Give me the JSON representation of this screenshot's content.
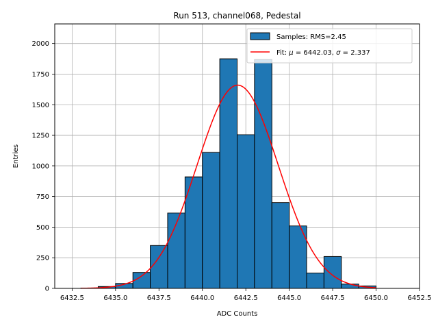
{
  "chart_data": {
    "type": "bar",
    "title": "Run 513, channel068, Pedestal",
    "xlabel": "ADC Counts",
    "ylabel": "Entries",
    "xlim": [
      6431.5,
      6452.5
    ],
    "ylim": [
      0,
      2160
    ],
    "grid": true,
    "legend_position": "top-right",
    "xticks": [
      6432.5,
      6435.0,
      6437.5,
      6440.0,
      6442.5,
      6445.0,
      6447.5,
      6450.0,
      6452.5
    ],
    "xtick_labels": [
      "6432.5",
      "6435.0",
      "6437.5",
      "6440.0",
      "6442.5",
      "6445.0",
      "6447.5",
      "6450.0",
      "6452.5"
    ],
    "yticks": [
      0,
      250,
      500,
      750,
      1000,
      1250,
      1500,
      1750,
      2000
    ],
    "ytick_labels": [
      "0",
      "250",
      "500",
      "750",
      "1000",
      "1250",
      "1500",
      "1750",
      "2000"
    ],
    "histogram": {
      "name": "Samples: RMS=2.45",
      "color": "#1f77b4",
      "edge_color": "#000000",
      "bin_width": 1.0,
      "bins": [
        {
          "start": 6433.0,
          "count": 2
        },
        {
          "start": 6434.0,
          "count": 15
        },
        {
          "start": 6435.0,
          "count": 40
        },
        {
          "start": 6436.0,
          "count": 130
        },
        {
          "start": 6437.0,
          "count": 350
        },
        {
          "start": 6438.0,
          "count": 615
        },
        {
          "start": 6439.0,
          "count": 910
        },
        {
          "start": 6440.0,
          "count": 1110
        },
        {
          "start": 6441.0,
          "count": 1875
        },
        {
          "start": 6442.0,
          "count": 1255
        },
        {
          "start": 6443.0,
          "count": 1870
        },
        {
          "start": 6444.0,
          "count": 700
        },
        {
          "start": 6445.0,
          "count": 510
        },
        {
          "start": 6446.0,
          "count": 125
        },
        {
          "start": 6447.0,
          "count": 260
        },
        {
          "start": 6448.0,
          "count": 35
        },
        {
          "start": 6449.0,
          "count": 20
        }
      ]
    },
    "fit": {
      "name": "Fit: μ = 6442.03, σ = 2.337",
      "name_prefix": "Fit: ",
      "name_mu": "μ",
      "name_mid": " = 6442.03, ",
      "name_sigma": "σ",
      "name_suffix": " = 2.337",
      "color": "#ff0000",
      "function": "gaussian",
      "mu": 6442.03,
      "sigma": 2.337,
      "amplitude": 1660,
      "x_range": [
        6433.0,
        6450.0
      ]
    }
  }
}
